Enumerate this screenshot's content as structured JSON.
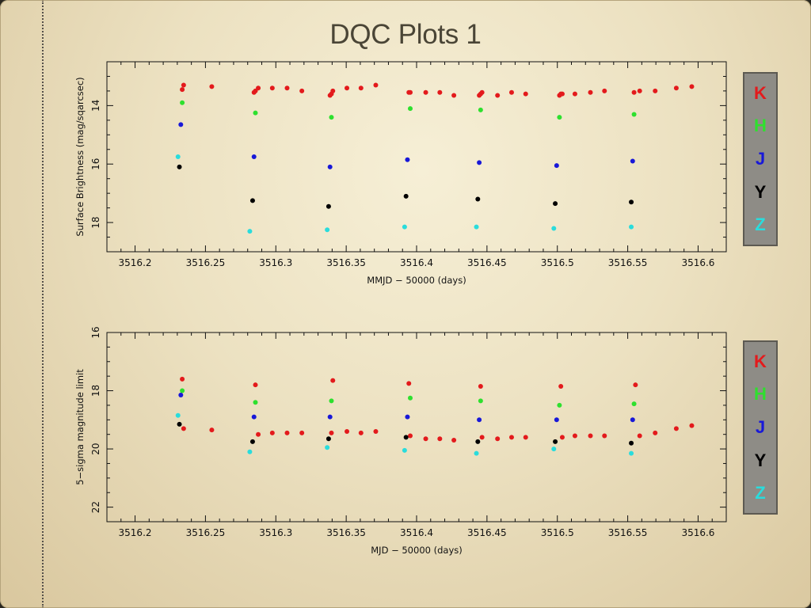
{
  "slide": {
    "title": "DQC Plots 1"
  },
  "colors": {
    "K": "#e31a1c",
    "H": "#2ee02e",
    "J": "#1818d8",
    "Y": "#000000",
    "Z": "#2adcdc"
  },
  "legend_order": [
    "K",
    "H",
    "J",
    "Y",
    "Z"
  ],
  "chart_data": [
    {
      "type": "scatter",
      "title": "",
      "xlabel": "MMJD − 50000 (days)",
      "ylabel": "Surface Brightness (mag/sqarcsec)",
      "xlim": [
        3516.18,
        3516.62
      ],
      "ylim": [
        19.0,
        12.5
      ],
      "y_inverted": true,
      "x_ticks": [
        3516.2,
        3516.25,
        3516.3,
        3516.35,
        3516.4,
        3516.45,
        3516.5,
        3516.55,
        3516.6
      ],
      "x_tick_labels": [
        "3516.2",
        "3516.25",
        "3516.3",
        "3516.35",
        "3516.4",
        "3516.45",
        "3516.5",
        "3516.55",
        "3516.6"
      ],
      "y_ticks": [
        14,
        16,
        18
      ],
      "y_tick_labels": [
        "14",
        "16",
        "18"
      ],
      "grid": false,
      "legend": "right",
      "series": [
        {
          "name": "K",
          "x": [
            3516.2335,
            3516.2345,
            3516.2545,
            3516.2845,
            3516.2855,
            3516.2875,
            3516.2975,
            3516.308,
            3516.3185,
            3516.3385,
            3516.3395,
            3516.3405,
            3516.3505,
            3516.3605,
            3516.371,
            3516.3945,
            3516.3955,
            3516.4065,
            3516.4165,
            3516.4265,
            3516.4445,
            3516.4455,
            3516.4465,
            3516.4575,
            3516.4675,
            3516.4775,
            3516.5015,
            3516.5025,
            3516.5035,
            3516.5125,
            3516.5235,
            3516.5335,
            3516.5545,
            3516.5585,
            3516.5695,
            3516.5845,
            3516.5955
          ],
          "y": [
            13.45,
            13.3,
            13.35,
            13.55,
            13.5,
            13.4,
            13.4,
            13.4,
            13.5,
            13.65,
            13.6,
            13.5,
            13.4,
            13.4,
            13.3,
            13.55,
            13.55,
            13.55,
            13.55,
            13.65,
            13.65,
            13.6,
            13.55,
            13.65,
            13.55,
            13.6,
            13.65,
            13.6,
            13.6,
            13.6,
            13.55,
            13.5,
            13.55,
            13.5,
            13.5,
            13.4,
            13.35
          ]
        },
        {
          "name": "H",
          "x": [
            3516.2335,
            3516.2855,
            3516.3395,
            3516.3955,
            3516.4455,
            3516.5015,
            3516.5545
          ],
          "y": [
            13.9,
            14.25,
            14.4,
            14.1,
            14.15,
            14.4,
            14.3
          ]
        },
        {
          "name": "J",
          "x": [
            3516.2325,
            3516.2845,
            3516.3385,
            3516.3935,
            3516.4445,
            3516.4995,
            3516.5535
          ],
          "y": [
            14.65,
            15.75,
            16.1,
            15.85,
            15.95,
            16.05,
            15.9
          ]
        },
        {
          "name": "Y",
          "x": [
            3516.2315,
            3516.2835,
            3516.3375,
            3516.3925,
            3516.4435,
            3516.4985,
            3516.5525
          ],
          "y": [
            16.1,
            17.25,
            17.45,
            17.1,
            17.2,
            17.35,
            17.3
          ]
        },
        {
          "name": "Z",
          "x": [
            3516.2305,
            3516.2815,
            3516.3365,
            3516.3915,
            3516.4425,
            3516.4975,
            3516.5525
          ],
          "y": [
            15.75,
            18.3,
            18.25,
            18.15,
            18.15,
            18.2,
            18.15
          ]
        }
      ]
    },
    {
      "type": "scatter",
      "title": "",
      "xlabel": "MJD − 50000 (days)",
      "ylabel": "5−sigma magnitude limit",
      "xlim": [
        3516.18,
        3516.62
      ],
      "ylim": [
        22.5,
        16.0
      ],
      "y_inverted": false,
      "x_ticks": [
        3516.2,
        3516.25,
        3516.3,
        3516.35,
        3516.4,
        3516.45,
        3516.5,
        3516.55,
        3516.6
      ],
      "x_tick_labels": [
        "3516.2",
        "3516.25",
        "3516.3",
        "3516.35",
        "3516.4",
        "3516.45",
        "3516.5",
        "3516.55",
        "3516.6"
      ],
      "y_ticks": [
        16,
        18,
        20,
        22
      ],
      "y_tick_labels": [
        "16",
        "18",
        "20",
        "22"
      ],
      "grid": false,
      "legend": "right",
      "series": [
        {
          "name": "K",
          "x": [
            3516.2335,
            3516.2345,
            3516.2545,
            3516.2855,
            3516.2875,
            3516.2975,
            3516.308,
            3516.3185,
            3516.3405,
            3516.3395,
            3516.3505,
            3516.3605,
            3516.371,
            3516.3945,
            3516.3955,
            3516.4065,
            3516.4165,
            3516.4265,
            3516.4455,
            3516.4465,
            3516.4575,
            3516.4675,
            3516.4775,
            3516.5025,
            3516.5035,
            3516.5125,
            3516.5235,
            3516.5335,
            3516.5555,
            3516.5585,
            3516.5695,
            3516.5845,
            3516.5955
          ],
          "y": [
            17.6,
            19.3,
            19.35,
            17.8,
            19.5,
            19.45,
            19.45,
            19.45,
            17.65,
            19.45,
            19.4,
            19.45,
            19.4,
            17.75,
            19.55,
            19.65,
            19.65,
            19.7,
            17.85,
            19.6,
            19.65,
            19.6,
            19.6,
            17.85,
            19.6,
            19.55,
            19.55,
            19.55,
            17.8,
            19.55,
            19.45,
            19.3,
            19.2
          ]
        },
        {
          "name": "H",
          "x": [
            3516.2335,
            3516.2855,
            3516.3395,
            3516.3955,
            3516.4455,
            3516.5015,
            3516.5545
          ],
          "y": [
            18.0,
            18.4,
            18.35,
            18.25,
            18.35,
            18.5,
            18.45
          ]
        },
        {
          "name": "J",
          "x": [
            3516.2325,
            3516.2845,
            3516.3385,
            3516.3935,
            3516.4445,
            3516.4995,
            3516.5535
          ],
          "y": [
            18.15,
            18.9,
            18.9,
            18.9,
            19.0,
            19.0,
            19.0
          ]
        },
        {
          "name": "Y",
          "x": [
            3516.2315,
            3516.2835,
            3516.3375,
            3516.3925,
            3516.4435,
            3516.4985,
            3516.5525
          ],
          "y": [
            19.15,
            19.75,
            19.65,
            19.6,
            19.75,
            19.75,
            19.8
          ]
        },
        {
          "name": "Z",
          "x": [
            3516.2305,
            3516.2815,
            3516.3365,
            3516.3915,
            3516.4425,
            3516.4975,
            3516.5525
          ],
          "y": [
            18.85,
            20.1,
            19.95,
            20.05,
            20.15,
            20.0,
            20.15
          ]
        }
      ]
    }
  ]
}
